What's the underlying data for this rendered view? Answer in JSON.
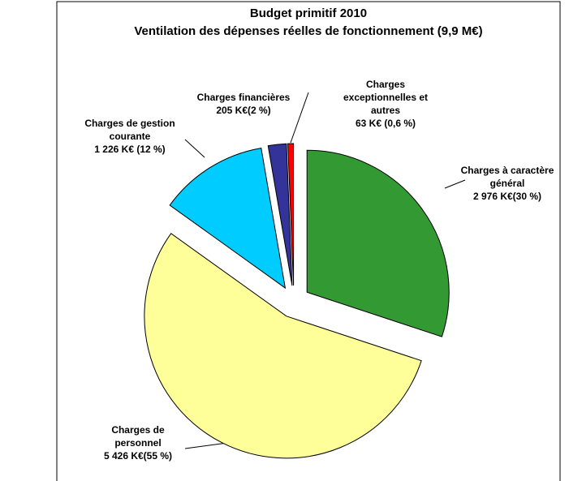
{
  "chart_data": {
    "type": "pie",
    "title": "Budget primitif 2010",
    "subtitle": "Ventilation des dépenses réelles de fonctionnement (9,9 M€)",
    "categories": [
      "Charges à caractère général",
      "Charges de personnel",
      "Charges de gestion courante",
      "Charges financières",
      "Charges exceptionnelles et autres"
    ],
    "values": [
      2976,
      5426,
      1226,
      205,
      63
    ],
    "value_labels": [
      "2 976 K€(30 %)",
      "5 426 K€(55 %)",
      "1 226 K€ (12 %)",
      "205 K€(2 %)",
      "63 K€ (0,6 %)"
    ],
    "colors": [
      "#339933",
      "#ffff99",
      "#00ccff",
      "#333399",
      "#ff0000"
    ]
  }
}
